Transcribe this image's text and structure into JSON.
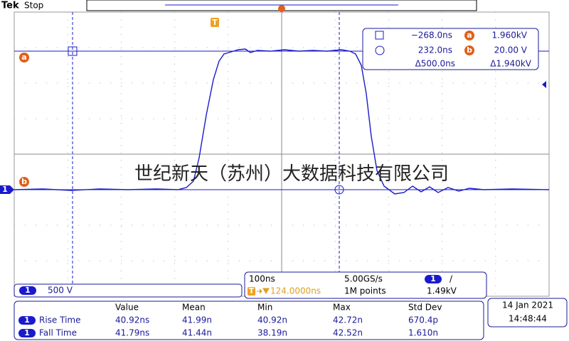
{
  "header": {
    "brand": "Tek",
    "status": "Stop"
  },
  "markers": {
    "trigger": "T",
    "cursor_a": "a",
    "cursor_b": "b",
    "channel": "1"
  },
  "cursor_readout": {
    "t1": "−268.0ns",
    "v1": "1.960kV",
    "t2": "232.0ns",
    "v2": "20.00 V",
    "dt": "Δ500.0ns",
    "dv": "Δ1.940kV"
  },
  "channel_scale": {
    "channel": "1",
    "scale": "500 V"
  },
  "acquisition": {
    "time_scale": "100ns",
    "sample_rate": "5.00GS/s",
    "trigger_channel": "1",
    "trigger_slope": "/",
    "trigger_level": "1.49kV",
    "trigger_position": "124.0000ns",
    "record_length": "1M points"
  },
  "measurements": {
    "headers": [
      "Value",
      "Mean",
      "Min",
      "Max",
      "Std Dev"
    ],
    "rows": [
      {
        "channel": "1",
        "name": "Rise Time",
        "values": [
          "40.92ns",
          "41.99n",
          "40.92n",
          "42.72n",
          "670.4p"
        ]
      },
      {
        "channel": "1",
        "name": "Fall Time",
        "values": [
          "41.79ns",
          "41.44n",
          "38.19n",
          "42.52n",
          "1.610n"
        ]
      }
    ]
  },
  "datetime": {
    "date": "14 Jan 2021",
    "time": "14:48:44"
  },
  "watermark": "世纪新天（苏州）大数据科技有限公司"
}
